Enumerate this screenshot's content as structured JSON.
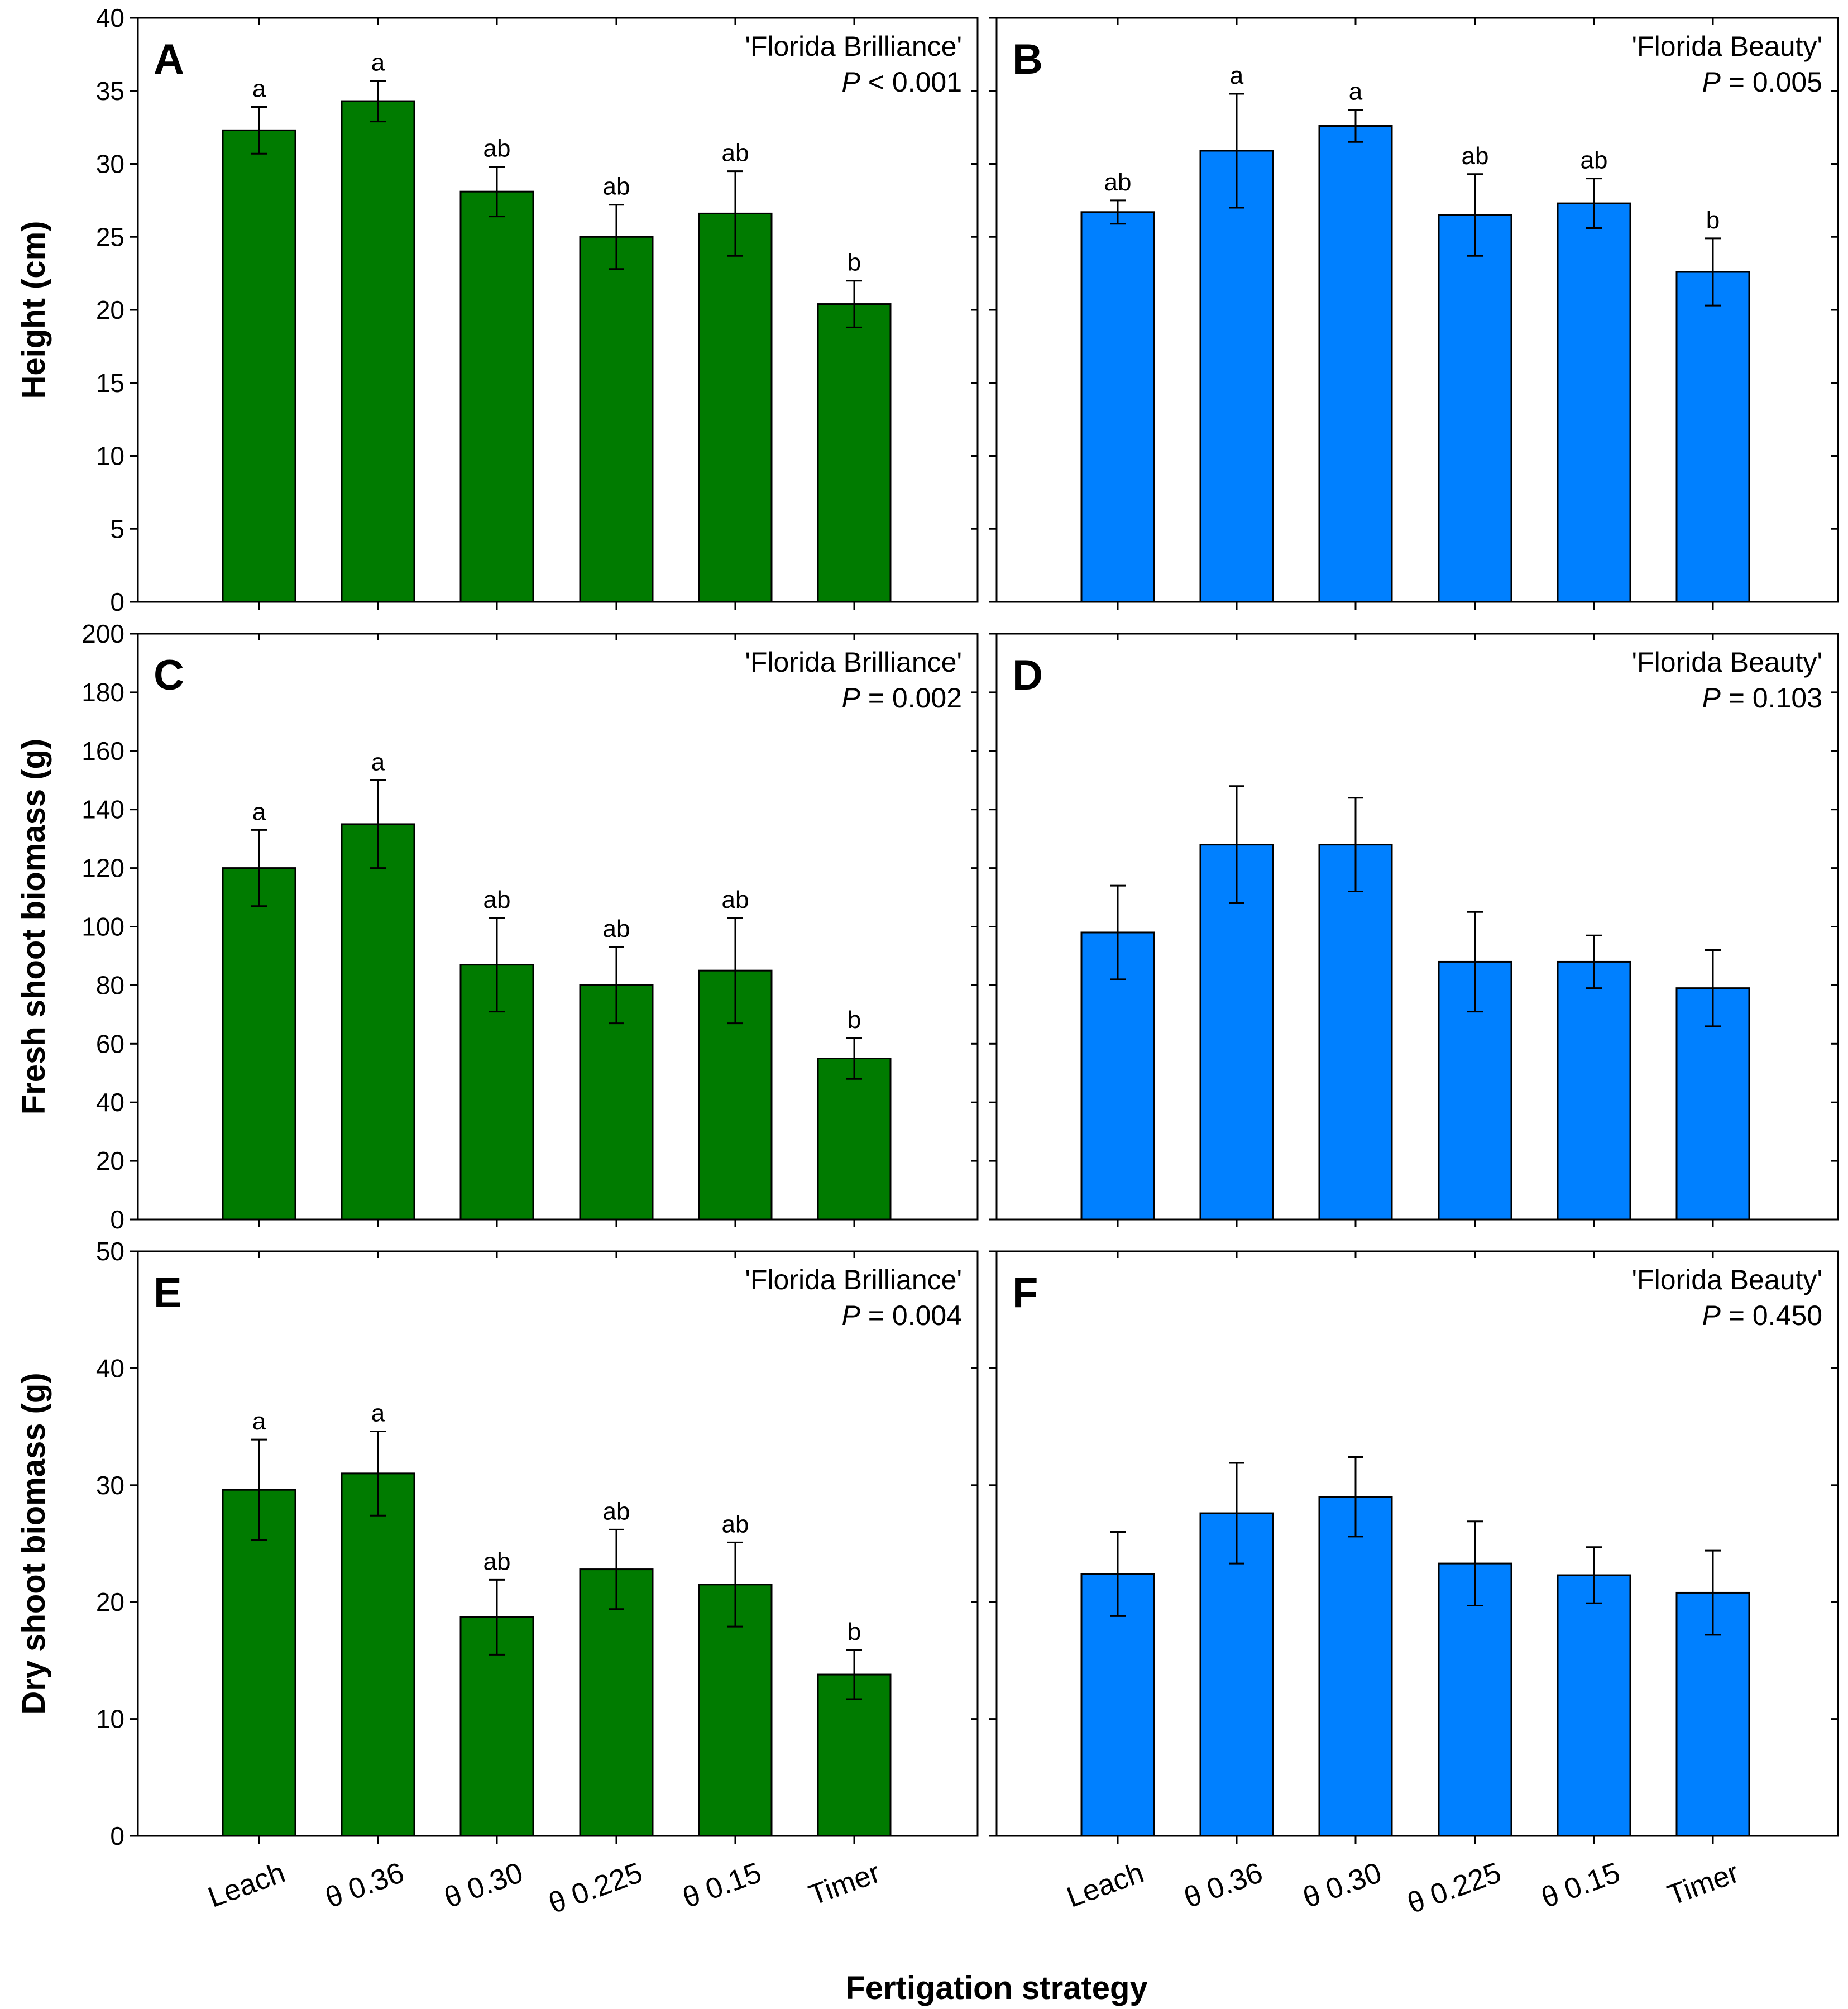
{
  "figure": {
    "x_axis_title": "Fertigation strategy",
    "categories": [
      "Leach",
      "θ 0.36",
      "θ 0.30",
      "θ 0.225",
      "θ 0.15",
      "Timer"
    ],
    "colors": {
      "florida_brilliance": "#007b00",
      "florida_beauty": "#0080ff"
    }
  },
  "chart_data": [
    {
      "panel": "A",
      "type": "bar",
      "cultivar": "'Florida Brilliance'",
      "p_label": "P",
      "p_text": " < 0.001",
      "ylabel": "Height (cm)",
      "ylim": [
        0,
        40
      ],
      "yticks": [
        0,
        5,
        10,
        15,
        20,
        25,
        30,
        35,
        40
      ],
      "color": "#007b00",
      "values": [
        32.3,
        34.3,
        28.1,
        25.0,
        26.6,
        20.4
      ],
      "errors": [
        1.6,
        1.4,
        1.7,
        2.2,
        2.9,
        1.6
      ],
      "letters": [
        "a",
        "a",
        "ab",
        "ab",
        "ab",
        "b"
      ]
    },
    {
      "panel": "B",
      "type": "bar",
      "cultivar": "'Florida Beauty'",
      "p_label": "P",
      "p_text": " = 0.005",
      "ylabel": "",
      "ylim": [
        0,
        40
      ],
      "yticks": [
        0,
        5,
        10,
        15,
        20,
        25,
        30,
        35,
        40
      ],
      "color": "#0080ff",
      "values": [
        26.7,
        30.9,
        32.6,
        26.5,
        27.3,
        22.6
      ],
      "errors": [
        0.8,
        3.9,
        1.1,
        2.8,
        1.7,
        2.3
      ],
      "letters": [
        "ab",
        "a",
        "a",
        "ab",
        "ab",
        "b"
      ]
    },
    {
      "panel": "C",
      "type": "bar",
      "cultivar": "'Florida Brilliance'",
      "p_label": "P",
      "p_text": " = 0.002",
      "ylabel": "Fresh shoot biomass (g)",
      "ylim": [
        0,
        200
      ],
      "yticks": [
        0,
        20,
        40,
        60,
        80,
        100,
        120,
        140,
        160,
        180,
        200
      ],
      "color": "#007b00",
      "values": [
        120,
        135,
        87,
        80,
        85,
        55
      ],
      "errors": [
        13,
        15,
        16,
        13,
        18,
        7
      ],
      "letters": [
        "a",
        "a",
        "ab",
        "ab",
        "ab",
        "b"
      ]
    },
    {
      "panel": "D",
      "type": "bar",
      "cultivar": "'Florida Beauty'",
      "p_label": "P",
      "p_text": " = 0.103",
      "ylabel": "",
      "ylim": [
        0,
        200
      ],
      "yticks": [
        0,
        20,
        40,
        60,
        80,
        100,
        120,
        140,
        160,
        180,
        200
      ],
      "color": "#0080ff",
      "values": [
        98,
        128,
        128,
        88,
        88,
        79
      ],
      "errors": [
        16,
        20,
        16,
        17,
        9,
        13
      ],
      "letters": [
        "",
        "",
        "",
        "",
        "",
        ""
      ]
    },
    {
      "panel": "E",
      "type": "bar",
      "cultivar": "'Florida Brilliance'",
      "p_label": "P",
      "p_text": " = 0.004",
      "ylabel": "Dry shoot biomass (g)",
      "ylim": [
        0,
        50
      ],
      "yticks": [
        0,
        10,
        20,
        30,
        40,
        50
      ],
      "color": "#007b00",
      "values": [
        29.6,
        31.0,
        18.7,
        22.8,
        21.5,
        13.8
      ],
      "errors": [
        4.3,
        3.6,
        3.2,
        3.4,
        3.6,
        2.1
      ],
      "letters": [
        "a",
        "a",
        "ab",
        "ab",
        "ab",
        "b"
      ]
    },
    {
      "panel": "F",
      "type": "bar",
      "cultivar": "'Florida Beauty'",
      "p_label": "P",
      "p_text": " = 0.450",
      "ylabel": "",
      "ylim": [
        0,
        50
      ],
      "yticks": [
        0,
        10,
        20,
        30,
        40,
        50
      ],
      "color": "#0080ff",
      "values": [
        22.4,
        27.6,
        29.0,
        23.3,
        22.3,
        20.8
      ],
      "errors": [
        3.6,
        4.3,
        3.4,
        3.6,
        2.4,
        3.6
      ],
      "letters": [
        "",
        "",
        "",
        "",
        "",
        ""
      ]
    }
  ]
}
